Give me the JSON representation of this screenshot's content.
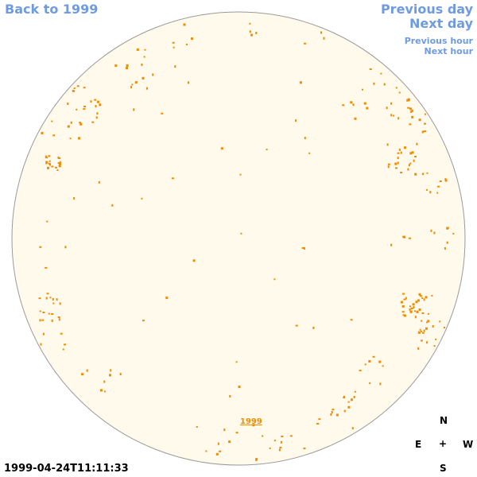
{
  "nav": {
    "back_label": "Back to 1999",
    "prev_day_label": "Previous day",
    "next_day_label": "Next day",
    "prev_hour_label": "Previous hour",
    "next_hour_label": "Next hour"
  },
  "timestamp": "1999-04-24T11:11:33",
  "year_label": "1999",
  "compass": {
    "north": "N",
    "east": "E",
    "center": "+",
    "west": "W",
    "south": "S"
  },
  "colors": {
    "disk_fill": "#fffaeb",
    "disk_stroke": "#9a9a9a",
    "marker": "#f08c00",
    "link": "#6f9be3"
  },
  "map": {
    "description_type": "sky-dome-plot",
    "markers_approx_count": 260
  }
}
